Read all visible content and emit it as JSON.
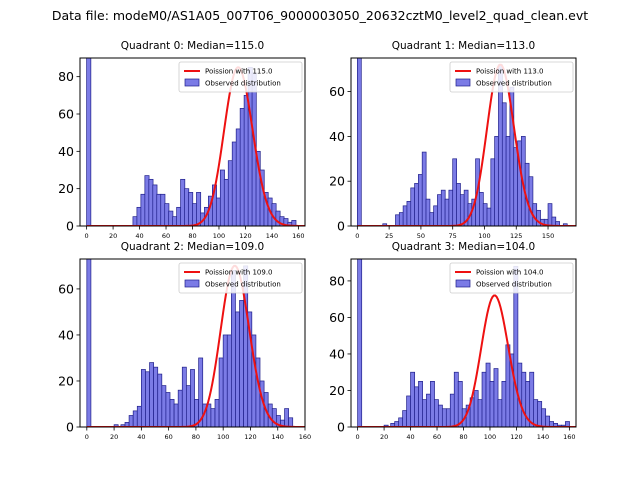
{
  "figure": {
    "suptitle": "Data file: modeM0/AS1A05_007T06_9000003050_20632cztM0_level2_quad_clean.evt"
  },
  "colors": {
    "hist_fill": "#7b7be6",
    "hist_edge": "#1f1f8a",
    "poisson_line": "#ee1111",
    "axes": "#000000"
  },
  "chart_data": [
    {
      "type": "bar",
      "title": "Quadrant 0: Median=115.0",
      "xlim": [
        -5,
        165
      ],
      "ylim": [
        0,
        90
      ],
      "xticks": [
        0,
        20,
        40,
        60,
        80,
        100,
        120,
        140,
        160
      ],
      "yticks": [
        0,
        20,
        40,
        60,
        80
      ],
      "bin_width": 3.2,
      "bin_starts": [
        0,
        35,
        38,
        41,
        44,
        47,
        50,
        53,
        56,
        59,
        62,
        65,
        68,
        71,
        74,
        77,
        80,
        83,
        86,
        89,
        92,
        95,
        98,
        101,
        104,
        107,
        110,
        113,
        116,
        119,
        122,
        125,
        128,
        131,
        134,
        137,
        140,
        143,
        146,
        149,
        152,
        155
      ],
      "counts": [
        90,
        5,
        10,
        17,
        27,
        25,
        22,
        17,
        17,
        12,
        8,
        5,
        10,
        25,
        20,
        18,
        12,
        18,
        7,
        10,
        16,
        22,
        15,
        30,
        25,
        35,
        45,
        52,
        63,
        70,
        85,
        82,
        40,
        30,
        18,
        15,
        12,
        8,
        5,
        4,
        2,
        3
      ],
      "poisson": {
        "mean": 115.0,
        "peak": 85
      },
      "legend": [
        "Poission with 115.0",
        "Observed distribution"
      ]
    },
    {
      "type": "bar",
      "title": "Quadrant 1: Median=113.0",
      "xlim": [
        -5,
        172
      ],
      "ylim": [
        0,
        75
      ],
      "xticks": [
        0,
        25,
        50,
        75,
        100,
        125,
        150
      ],
      "yticks": [
        0,
        20,
        40,
        60
      ],
      "bin_width": 3.1,
      "bin_starts": [
        0,
        20,
        30,
        33,
        36,
        39,
        42,
        45,
        48,
        51,
        54,
        57,
        60,
        63,
        66,
        69,
        72,
        75,
        78,
        81,
        84,
        87,
        90,
        93,
        96,
        99,
        102,
        105,
        108,
        111,
        114,
        117,
        120,
        123,
        126,
        129,
        132,
        135,
        138,
        141,
        144,
        147,
        150,
        153,
        156,
        162
      ],
      "counts": [
        75,
        1,
        5,
        6,
        9,
        11,
        17,
        19,
        23,
        33,
        12,
        6,
        9,
        14,
        16,
        12,
        16,
        30,
        19,
        14,
        16,
        10,
        12,
        30,
        15,
        10,
        8,
        30,
        40,
        72,
        55,
        40,
        62,
        35,
        38,
        40,
        28,
        22,
        10,
        7,
        3,
        3,
        10,
        4,
        2,
        1
      ],
      "poisson": {
        "mean": 113.0,
        "peak": 72
      },
      "legend": [
        "Poission with 113.0",
        "Observed distribution"
      ]
    },
    {
      "type": "bar",
      "title": "Quadrant 2: Median=109.0",
      "xlim": [
        -5,
        160
      ],
      "ylim": [
        0,
        73
      ],
      "xticks": [
        0,
        20,
        40,
        60,
        80,
        100,
        120,
        140,
        160
      ],
      "yticks": [
        0,
        20,
        40,
        60
      ],
      "bin_width": 3.0,
      "bin_starts": [
        0,
        20,
        25,
        28,
        31,
        34,
        37,
        40,
        43,
        46,
        49,
        52,
        55,
        58,
        61,
        64,
        67,
        70,
        73,
        76,
        79,
        82,
        85,
        88,
        91,
        94,
        97,
        100,
        103,
        106,
        109,
        112,
        115,
        118,
        121,
        124,
        127,
        130,
        133,
        136,
        139,
        142,
        145,
        148
      ],
      "counts": [
        73,
        1,
        1,
        2,
        5,
        7,
        9,
        25,
        24,
        28,
        26,
        23,
        18,
        15,
        12,
        10,
        16,
        26,
        18,
        25,
        12,
        30,
        10,
        10,
        8,
        12,
        30,
        40,
        40,
        68,
        50,
        55,
        70,
        50,
        40,
        30,
        20,
        15,
        10,
        8,
        5,
        3,
        8,
        4
      ],
      "poisson": {
        "mean": 109.0,
        "peak": 70
      },
      "legend": [
        "Poission with 109.0",
        "Observed distribution"
      ]
    },
    {
      "type": "bar",
      "title": "Quadrant 3: Median=104.0",
      "xlim": [
        -5,
        165
      ],
      "ylim": [
        0,
        92
      ],
      "xticks": [
        0,
        20,
        40,
        60,
        80,
        100,
        120,
        140,
        160
      ],
      "yticks": [
        0,
        20,
        40,
        60,
        80
      ],
      "bin_width": 3.1,
      "bin_starts": [
        0,
        20,
        25,
        28,
        31,
        34,
        37,
        40,
        43,
        46,
        49,
        52,
        55,
        58,
        61,
        64,
        67,
        70,
        73,
        76,
        79,
        82,
        85,
        88,
        91,
        94,
        97,
        100,
        103,
        106,
        109,
        112,
        115,
        118,
        121,
        124,
        127,
        130,
        133,
        136,
        139,
        142,
        145,
        148,
        151,
        154,
        157
      ],
      "counts": [
        92,
        1,
        2,
        3,
        5,
        9,
        17,
        30,
        22,
        25,
        15,
        18,
        25,
        15,
        12,
        10,
        10,
        18,
        30,
        25,
        10,
        12,
        16,
        20,
        15,
        30,
        35,
        25,
        32,
        15,
        25,
        45,
        40,
        88,
        35,
        30,
        25,
        30,
        15,
        14,
        10,
        6,
        3,
        2,
        1,
        1,
        3
      ],
      "poisson": {
        "mean": 104.0,
        "peak": 72
      },
      "legend": [
        "Poission with 104.0",
        "Observed distribution"
      ]
    }
  ]
}
